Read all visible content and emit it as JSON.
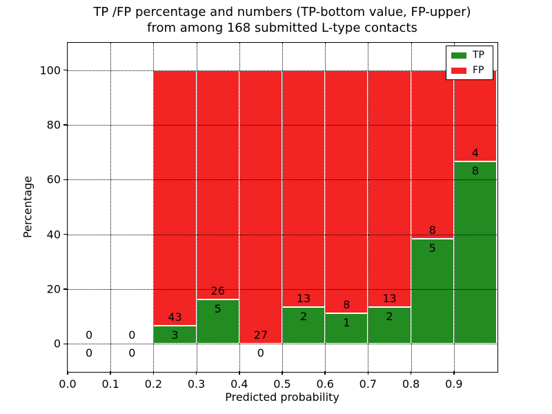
{
  "chart_data": {
    "type": "bar",
    "stacked": true,
    "title_line1": "TP /FP percentage and numbers (TP-bottom value, FP-upper)",
    "title_line2": "from among 168 submitted L-type contacts",
    "xlabel": "Predicted probability",
    "ylabel": "Percentage",
    "total_contacts_shown_in_title": 168,
    "xlim": [
      0.0,
      1.0
    ],
    "ylim": [
      -10,
      110
    ],
    "grid": true,
    "xticks": [
      0.0,
      0.1,
      0.2,
      0.3,
      0.4,
      0.5,
      0.6,
      0.7,
      0.8,
      0.9
    ],
    "xtick_labels": [
      "0.0",
      "0.1",
      "0.2",
      "0.3",
      "0.4",
      "0.5",
      "0.6",
      "0.7",
      "0.8",
      "0.9"
    ],
    "yticks": [
      0,
      20,
      40,
      60,
      80,
      100
    ],
    "ytick_labels": [
      "0",
      "20",
      "40",
      "60",
      "80",
      "100"
    ],
    "legend": {
      "position": "upper right",
      "entries": [
        {
          "label": "TP",
          "color": "#228b22"
        },
        {
          "label": "FP",
          "color": "#f32424"
        }
      ]
    },
    "bins": [
      {
        "range": [
          0.0,
          0.1
        ],
        "tp": 0,
        "fp": 0,
        "tp_pct": 0.0,
        "fp_pct": 0.0
      },
      {
        "range": [
          0.1,
          0.2
        ],
        "tp": 0,
        "fp": 0,
        "tp_pct": 0.0,
        "fp_pct": 0.0
      },
      {
        "range": [
          0.2,
          0.3
        ],
        "tp": 3,
        "fp": 43,
        "tp_pct": 6.52,
        "fp_pct": 93.48
      },
      {
        "range": [
          0.3,
          0.4
        ],
        "tp": 5,
        "fp": 26,
        "tp_pct": 16.13,
        "fp_pct": 83.87
      },
      {
        "range": [
          0.4,
          0.5
        ],
        "tp": 0,
        "fp": 27,
        "tp_pct": 0.0,
        "fp_pct": 100.0
      },
      {
        "range": [
          0.5,
          0.6
        ],
        "tp": 2,
        "fp": 13,
        "tp_pct": 13.33,
        "fp_pct": 86.67
      },
      {
        "range": [
          0.6,
          0.7
        ],
        "tp": 1,
        "fp": 8,
        "tp_pct": 11.11,
        "fp_pct": 88.89
      },
      {
        "range": [
          0.7,
          0.8
        ],
        "tp": 2,
        "fp": 13,
        "tp_pct": 13.33,
        "fp_pct": 86.67
      },
      {
        "range": [
          0.8,
          0.9
        ],
        "tp": 5,
        "fp": 8,
        "tp_pct": 38.46,
        "fp_pct": 61.54
      },
      {
        "range": [
          0.9,
          1.0
        ],
        "tp": 8,
        "fp": 4,
        "tp_pct": 66.67,
        "fp_pct": 33.33
      }
    ]
  }
}
